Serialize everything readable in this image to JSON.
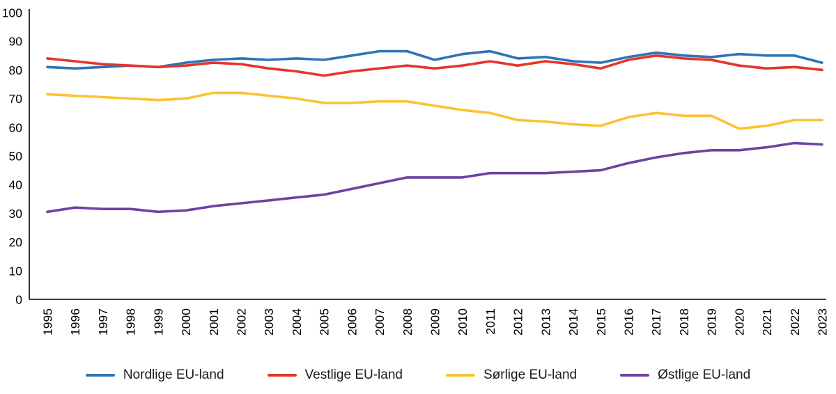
{
  "chart_data": {
    "type": "line",
    "title": "",
    "xlabel": "",
    "ylabel": "",
    "ylim": [
      0,
      100
    ],
    "ytick_step": 10,
    "yticks": [
      0,
      10,
      20,
      30,
      40,
      50,
      60,
      70,
      80,
      90,
      100
    ],
    "grid": false,
    "legend_position": "bottom",
    "x": [
      1995,
      1996,
      1997,
      1998,
      1999,
      2000,
      2001,
      2002,
      2003,
      2004,
      2005,
      2006,
      2007,
      2008,
      2009,
      2010,
      2011,
      2012,
      2013,
      2014,
      2015,
      2016,
      2017,
      2018,
      2019,
      2020,
      2021,
      2022,
      2023
    ],
    "series": [
      {
        "name": "Nordlige EU-land",
        "color": "#2E74B5",
        "values": [
          81,
          80.5,
          81,
          81.5,
          81,
          82.5,
          83.5,
          84,
          83.5,
          84,
          83.5,
          85,
          86.5,
          86.5,
          83.5,
          85.5,
          86.5,
          84,
          84.5,
          83,
          82.5,
          84.5,
          86,
          85,
          84.5,
          85.5,
          85,
          85,
          82.5
        ]
      },
      {
        "name": "Vestlige EU-land",
        "color": "#E5352B",
        "values": [
          84,
          83,
          82,
          81.5,
          81,
          81.5,
          82.5,
          82,
          80.5,
          79.5,
          78,
          79.5,
          80.5,
          81.5,
          80.5,
          81.5,
          83,
          81.5,
          83,
          82,
          80.5,
          83.5,
          85,
          84,
          83.5,
          81.5,
          80.5,
          81,
          80
        ]
      },
      {
        "name": "Sørlige EU-land",
        "color": "#FBC334",
        "values": [
          71.5,
          71,
          70.5,
          70,
          69.5,
          70,
          72,
          72,
          71,
          70,
          68.5,
          68.5,
          69,
          69,
          67.5,
          66,
          65,
          62.5,
          62,
          61,
          60.5,
          63.5,
          65,
          64,
          64,
          59.5,
          60.5,
          62.5,
          62.5
        ]
      },
      {
        "name": "Østlige EU-land",
        "color": "#6F42A1",
        "values": [
          30.5,
          32,
          31.5,
          31.5,
          30.5,
          31,
          32.5,
          33.5,
          34.5,
          35.5,
          36.5,
          38.5,
          40.5,
          42.5,
          42.5,
          42.5,
          44,
          44,
          44,
          44.5,
          45,
          47.5,
          49.5,
          51,
          52,
          52,
          53,
          54.5,
          54
        ]
      }
    ]
  }
}
